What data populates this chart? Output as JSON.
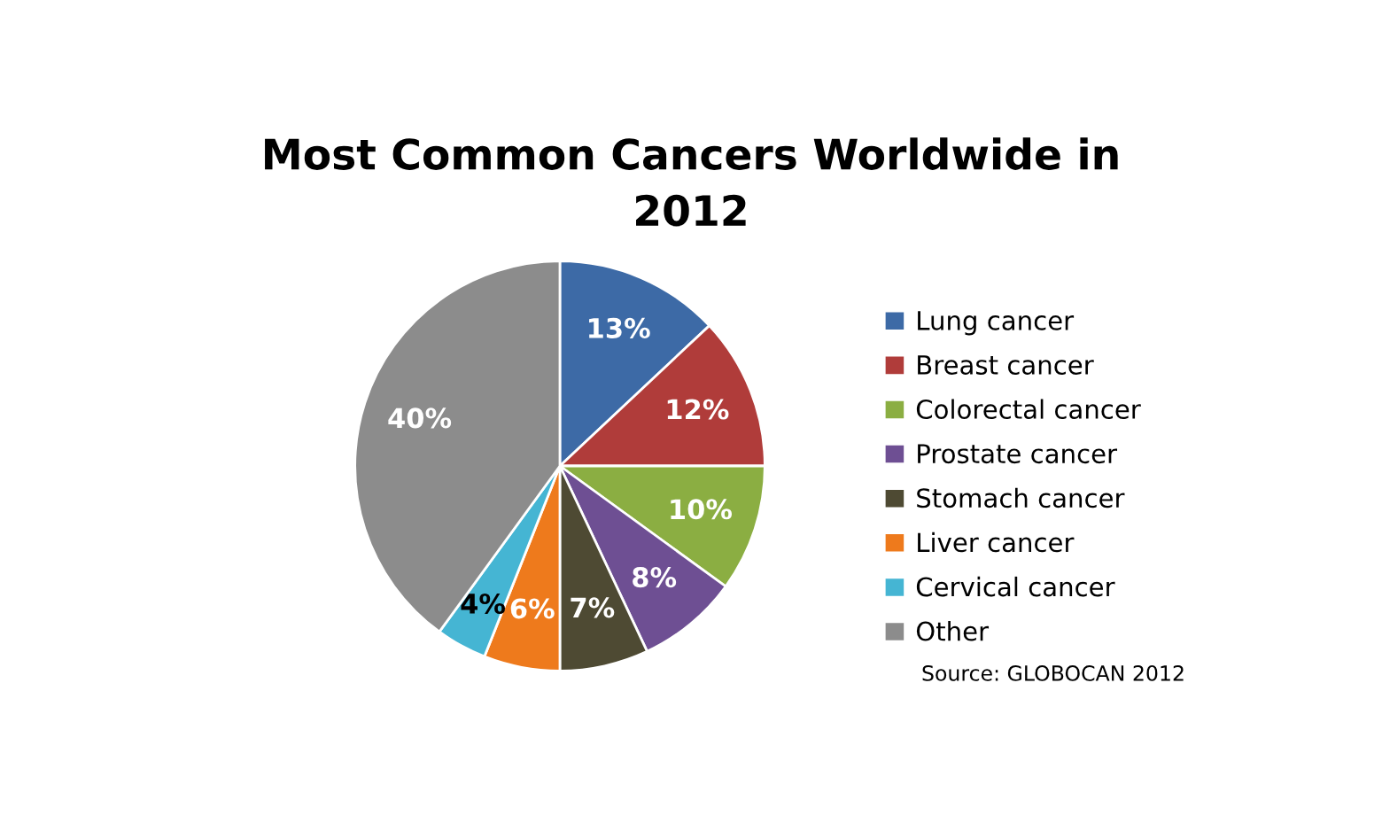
{
  "chart_data": {
    "type": "pie",
    "title": "Most Common Cancers Worldwide in\n2012",
    "categories": [
      "Lung cancer",
      "Breast cancer",
      "Colorectal cancer",
      "Prostate cancer",
      "Stomach cancer",
      "Liver cancer",
      "Cervical cancer",
      "Other"
    ],
    "values": [
      13,
      12,
      10,
      8,
      7,
      6,
      4,
      40
    ],
    "colors": [
      "#3d6aa6",
      "#b03c3a",
      "#8bae42",
      "#6e4f93",
      "#4e4a33",
      "#ee7a1c",
      "#45b5d3",
      "#8c8c8c"
    ],
    "value_labels": [
      "13%",
      "12%",
      "10%",
      "8%",
      "7%",
      "6%",
      "4%",
      "40%"
    ],
    "legend": "right",
    "annotations": [
      "Source: GLOBOCAN 2012"
    ]
  }
}
